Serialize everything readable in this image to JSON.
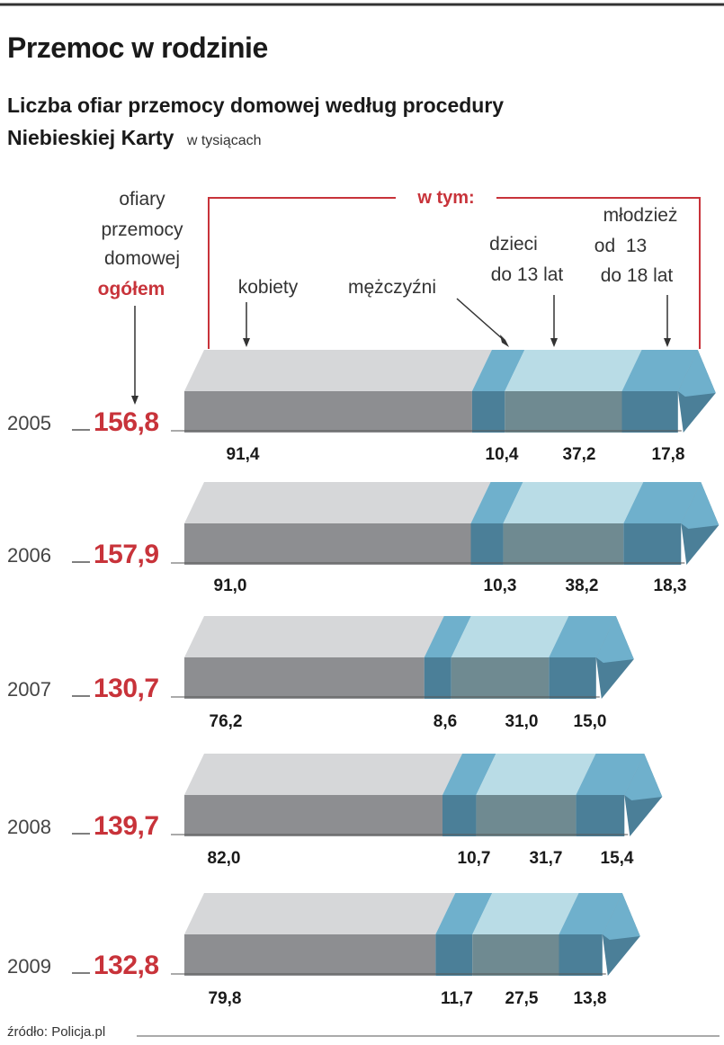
{
  "colors": {
    "red": "#c8333a",
    "kobiety_top": "#d6d7d9",
    "kobiety_front": "#8d8e91",
    "mezczyzni_top": "#6fb0cc",
    "mezczyzni_front": "#4b7f98",
    "dzieci_top": "#b9dce6",
    "dzieci_front": "#6f8a91",
    "mlodziez_top": "#6fb0cc",
    "mlodziez_front": "#4b7f98"
  },
  "chart_data": {
    "type": "bar",
    "stacked": true,
    "orientation": "horizontal",
    "title": "Przemoc w rodzinie",
    "subtitle_line1": "Liczba ofiar przemocy domowej według procedury",
    "subtitle_line2": "Niebieskiej Karty",
    "unit": "w tysiącach",
    "total_label_lines": [
      "ofiary",
      "przemocy",
      "domowej"
    ],
    "total_label_emph": "ogółem",
    "group_label": "w tym:",
    "legend_kobiety": "kobiety",
    "legend_mezczyzni": "mężczyźni",
    "legend_dzieci_lines": [
      "dzieci",
      "do 13 lat"
    ],
    "legend_mlodziez_lines": [
      "młodzież",
      "od  13",
      "do 18 lat"
    ],
    "categories": [
      "2005",
      "2006",
      "2007",
      "2008",
      "2009"
    ],
    "totals": [
      "156,8",
      "157,9",
      "130,7",
      "139,7",
      "132,8"
    ],
    "series": [
      {
        "name": "kobiety",
        "values": [
          91.4,
          91.0,
          76.2,
          82.0,
          79.8
        ],
        "labels": [
          "91,4",
          "91,0",
          "76,2",
          "82,0",
          "79,8"
        ]
      },
      {
        "name": "mężczyźni",
        "values": [
          10.4,
          10.3,
          8.6,
          10.7,
          11.7
        ],
        "labels": [
          "10,4",
          "10,3",
          "8,6",
          "10,7",
          "11,7"
        ]
      },
      {
        "name": "dzieci do 13 lat",
        "values": [
          37.2,
          38.2,
          31.0,
          31.7,
          27.5
        ],
        "labels": [
          "37,2",
          "38,2",
          "31,0",
          "31,7",
          "27,5"
        ]
      },
      {
        "name": "młodzież od 13 do 18 lat",
        "values": [
          17.8,
          18.3,
          15.0,
          15.4,
          13.8
        ],
        "labels": [
          "17,8",
          "18,3",
          "15,0",
          "15,4",
          "13,8"
        ]
      }
    ],
    "source": "źródło: Policja.pl"
  }
}
